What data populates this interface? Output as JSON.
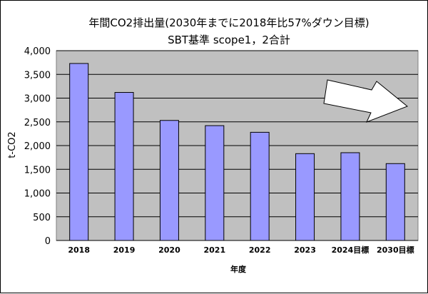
{
  "chart_data": {
    "type": "bar",
    "title": "年間CO2排出量(2030年までに2018年比57%ダウン目標)",
    "subtitle": "SBT基準 scope1，2合計",
    "categories": [
      "2018",
      "2019",
      "2020",
      "2021",
      "2022",
      "2023",
      "2024目標",
      "2030目標"
    ],
    "values": [
      3730,
      3120,
      2530,
      2420,
      2280,
      1830,
      1850,
      1620
    ],
    "xlabel": "年度",
    "ylabel": "t-CO2",
    "ylim": [
      0,
      4000
    ],
    "yticks": [
      0,
      500,
      1000,
      1500,
      2000,
      2500,
      3000,
      3500,
      4000
    ],
    "ytick_labels": [
      "0",
      "500",
      "1,000",
      "1,500",
      "2,000",
      "2,500",
      "3,000",
      "3,500",
      "4,000"
    ],
    "grid": true,
    "legend": "none",
    "colors": {
      "bar_fill": "#9999ff",
      "bar_stroke": "#000000",
      "plot_background": "#c0c0c0",
      "arrow_fill": "#ffffff"
    }
  }
}
